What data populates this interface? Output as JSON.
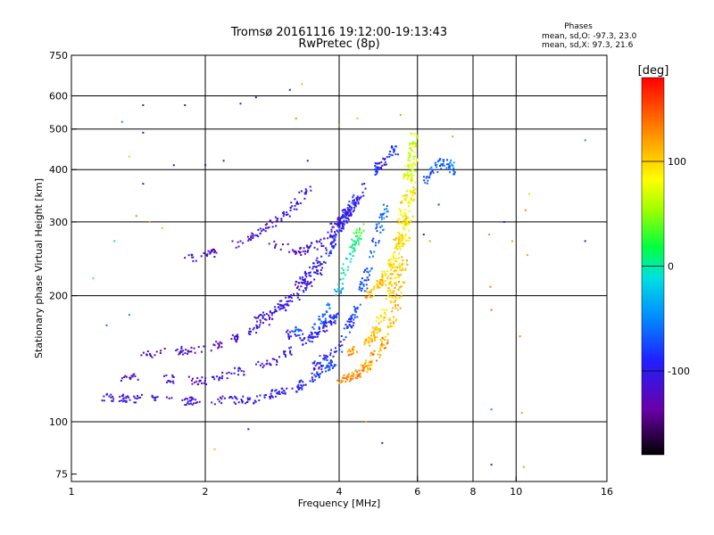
{
  "chart_data": {
    "type": "scatter",
    "title": "Tromsø 20161116 19:12:00-19:13:43",
    "subtitle": "RwPretec (8p)",
    "stats": {
      "heading": "Phases",
      "line_o": "mean, sd,O: -97.3, 23.0",
      "line_x": "mean, sd,X:  97.3, 21.6"
    },
    "xlabel": "Frequency [MHz]",
    "ylabel": "Stationary phase Virtual Height [km]",
    "x_scale": "log",
    "y_scale": "log",
    "xlim": [
      1,
      16
    ],
    "ylim": [
      72,
      750
    ],
    "x_ticks": [
      {
        "v": 1,
        "label": "1"
      },
      {
        "v": 2,
        "label": "2"
      },
      {
        "v": 4,
        "label": "4"
      },
      {
        "v": 6,
        "label": "6"
      },
      {
        "v": 8,
        "label": "8"
      },
      {
        "v": 10,
        "label": "10"
      },
      {
        "v": 16,
        "label": "16"
      }
    ],
    "x_grid": [
      2,
      4,
      6,
      8,
      10
    ],
    "y_ticks": [
      {
        "v": 75,
        "label": "75"
      },
      {
        "v": 100,
        "label": "100"
      },
      {
        "v": 200,
        "label": "200"
      },
      {
        "v": 300,
        "label": "300"
      },
      {
        "v": 400,
        "label": "400"
      },
      {
        "v": 500,
        "label": "500"
      },
      {
        "v": 600,
        "label": "600"
      },
      {
        "v": 750,
        "label": "750"
      }
    ],
    "y_grid": [
      100,
      200,
      300,
      400,
      500,
      600
    ],
    "grid": true,
    "colorbar": {
      "label": "[deg]",
      "range": [
        -180,
        180
      ],
      "ticks": [
        {
          "v": 100,
          "label": "100"
        },
        {
          "v": 0,
          "label": "0"
        },
        {
          "v": -100,
          "label": "-100"
        }
      ]
    },
    "traces": [
      {
        "x0": 1.1,
        "h0": 115,
        "x1": 1.8,
        "h1": 112,
        "x2": 2.6,
        "h2": 113,
        "x3": 3.3,
        "h3": 122,
        "x4": 3.9,
        "h4": 138,
        "n": 70,
        "p0": -110,
        "p1": -80
      },
      {
        "x0": 1.3,
        "h0": 128,
        "x1": 2.0,
        "h1": 125,
        "x2": 2.9,
        "h2": 140,
        "x3": 3.6,
        "h3": 165,
        "x4": 3.95,
        "h4": 180,
        "n": 60,
        "p0": -120,
        "p1": -90
      },
      {
        "x0": 1.45,
        "h0": 145,
        "x1": 2.1,
        "h1": 150,
        "x2": 2.7,
        "h2": 170,
        "x3": 3.3,
        "h3": 215,
        "x4": 3.7,
        "h4": 250,
        "n": 55,
        "p0": -125,
        "p1": -95
      },
      {
        "x0": 1.8,
        "h0": 245,
        "x1": 2.2,
        "h1": 255,
        "x2": 2.7,
        "h2": 285,
        "x3": 3.1,
        "h3": 320,
        "x4": 3.4,
        "h4": 360,
        "n": 35,
        "p0": -115,
        "p1": -105
      },
      {
        "x0": 2.6,
        "h0": 175,
        "x1": 3.2,
        "h1": 195,
        "x2": 3.7,
        "h2": 240,
        "x3": 4.0,
        "h3": 290,
        "x4": 4.2,
        "h4": 330,
        "n": 45,
        "p0": -110,
        "p1": -90
      },
      {
        "x0": 2.8,
        "h0": 265,
        "x1": 3.3,
        "h1": 255,
        "x2": 3.8,
        "h2": 275,
        "x3": 4.1,
        "h3": 300,
        "x4": 4.4,
        "h4": 340,
        "n": 35,
        "p0": -115,
        "p1": -95
      },
      {
        "x0": 3.5,
        "h0": 135,
        "x1": 4.0,
        "h1": 150,
        "x2": 4.4,
        "h2": 185,
        "x3": 4.7,
        "h3": 240,
        "x4": 5.1,
        "h4": 330,
        "n": 50,
        "p0": -100,
        "p1": -60
      },
      {
        "x0": 3.0,
        "h0": 160,
        "x1": 3.6,
        "h1": 170,
        "x2": 4.0,
        "h2": 205,
        "x3": 4.3,
        "h3": 260,
        "x4": 4.5,
        "h4": 300,
        "n": 40,
        "p0": -100,
        "p1": 40
      },
      {
        "x0": 4.0,
        "h0": 125,
        "x1": 4.5,
        "h1": 132,
        "x2": 5.0,
        "h2": 150,
        "x3": 5.4,
        "h3": 190,
        "x4": 5.7,
        "h4": 280,
        "n": 55,
        "p0": 130,
        "p1": 100
      },
      {
        "x0": 4.2,
        "h0": 145,
        "x1": 4.8,
        "h1": 160,
        "x2": 5.2,
        "h2": 200,
        "x3": 5.6,
        "h3": 270,
        "x4": 5.9,
        "h4": 360,
        "n": 55,
        "p0": 120,
        "p1": 90
      },
      {
        "x0": 4.6,
        "h0": 200,
        "x1": 5.0,
        "h1": 215,
        "x2": 5.4,
        "h2": 255,
        "x3": 5.7,
        "h3": 320,
        "x4": 5.9,
        "h4": 430,
        "n": 50,
        "p0": 110,
        "p1": 80
      },
      {
        "x0": 5.2,
        "h0": 220,
        "x1": 5.5,
        "h1": 300,
        "x2": 5.7,
        "h2": 380,
        "x3": 5.8,
        "h3": 440,
        "x4": 5.9,
        "h4": 480,
        "n": 35,
        "p0": 100,
        "p1": 70
      },
      {
        "x0": 3.8,
        "h0": 290,
        "x1": 4.3,
        "h1": 330,
        "x2": 4.7,
        "h2": 380,
        "x3": 5.0,
        "h3": 420,
        "x4": 5.4,
        "h4": 450,
        "n": 30,
        "p0": -110,
        "p1": -80
      },
      {
        "x0": 6.2,
        "h0": 370,
        "x1": 6.5,
        "h1": 395,
        "x2": 6.8,
        "h2": 420,
        "x3": 7.1,
        "h3": 410,
        "x4": 7.3,
        "h4": 380,
        "n": 18,
        "p0": -80,
        "p1": -50
      }
    ],
    "noise_points": [
      [
        1.3,
        520,
        -40
      ],
      [
        1.45,
        570,
        -110
      ],
      [
        1.45,
        490,
        -120
      ],
      [
        1.8,
        570,
        -110
      ],
      [
        2.4,
        575,
        -100
      ],
      [
        2.6,
        595,
        -110
      ],
      [
        3.1,
        620,
        -110
      ],
      [
        3.3,
        640,
        110
      ],
      [
        1.35,
        430,
        100
      ],
      [
        1.45,
        370,
        -110
      ],
      [
        1.7,
        410,
        -110
      ],
      [
        2.2,
        420,
        -110
      ],
      [
        1.12,
        220,
        30
      ],
      [
        1.2,
        170,
        -60
      ],
      [
        1.25,
        270,
        0
      ],
      [
        1.35,
        180,
        -40
      ],
      [
        1.5,
        300,
        120
      ],
      [
        2.5,
        96,
        -110
      ],
      [
        2.1,
        86,
        110
      ],
      [
        4.6,
        100,
        120
      ],
      [
        5.0,
        89,
        -120
      ],
      [
        8.7,
        280,
        130
      ],
      [
        8.75,
        210,
        130
      ],
      [
        8.8,
        185,
        140
      ],
      [
        8.8,
        107,
        -40
      ],
      [
        8.8,
        79,
        -100
      ],
      [
        9.4,
        300,
        -110
      ],
      [
        9.8,
        270,
        120
      ],
      [
        10.2,
        160,
        130
      ],
      [
        10.3,
        105,
        120
      ],
      [
        10.4,
        78,
        120
      ],
      [
        10.5,
        320,
        130
      ],
      [
        10.6,
        250,
        120
      ],
      [
        10.7,
        350,
        100
      ],
      [
        14.3,
        470,
        -40
      ],
      [
        14.3,
        270,
        -110
      ],
      [
        3.2,
        530,
        130
      ],
      [
        4.0,
        510,
        130
      ],
      [
        4.4,
        530,
        110
      ],
      [
        5.5,
        540,
        120
      ],
      [
        7.2,
        480,
        120
      ],
      [
        6.2,
        280,
        -110
      ],
      [
        6.4,
        270,
        120
      ],
      [
        3.4,
        420,
        -110
      ],
      [
        1.4,
        310,
        130
      ],
      [
        1.6,
        290,
        110
      ],
      [
        2.0,
        410,
        -120
      ],
      [
        6.7,
        330,
        -80
      ]
    ]
  }
}
